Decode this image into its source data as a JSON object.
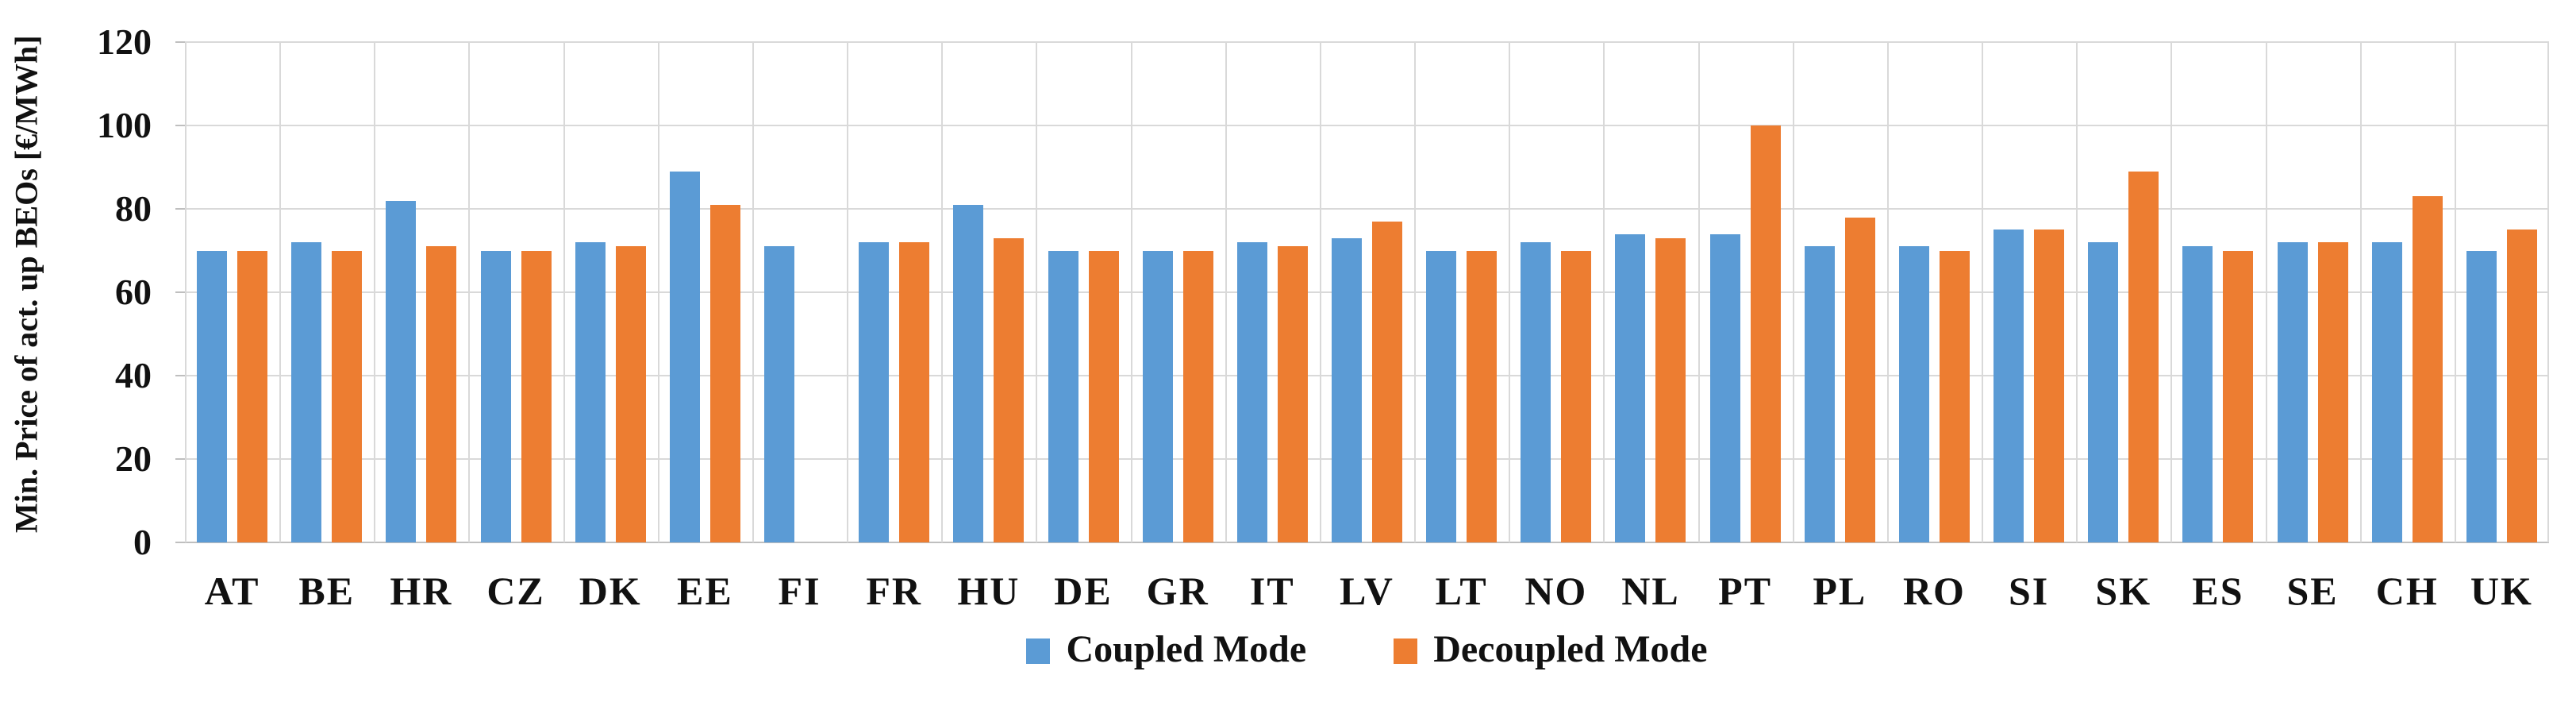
{
  "chart_data": {
    "type": "bar",
    "title": "",
    "xlabel": "",
    "ylabel": "Min. Price of act. up BEOs [€/MWh]",
    "ylim": [
      0,
      120
    ],
    "yticks": [
      0,
      20,
      40,
      60,
      80,
      100,
      120
    ],
    "grid": true,
    "legend_position": "bottom-center",
    "categories": [
      "AT",
      "BE",
      "HR",
      "CZ",
      "DK",
      "EE",
      "FI",
      "FR",
      "HU",
      "DE",
      "GR",
      "IT",
      "LV",
      "LT",
      "NO",
      "NL",
      "PT",
      "PL",
      "RO",
      "SI",
      "SK",
      "ES",
      "SE",
      "CH",
      "UK"
    ],
    "series": [
      {
        "name": "Coupled Mode",
        "color": "#5B9BD5",
        "values": [
          70,
          72,
          82,
          70,
          72,
          89,
          71,
          72,
          81,
          70,
          70,
          72,
          73,
          70,
          72,
          74,
          74,
          71,
          71,
          75,
          72,
          71,
          72,
          72,
          70
        ]
      },
      {
        "name": "Decoupled Mode",
        "color": "#ED7D31",
        "values": [
          70,
          70,
          71,
          70,
          71,
          81,
          null,
          72,
          73,
          70,
          70,
          71,
          77,
          70,
          70,
          73,
          100,
          78,
          70,
          75,
          89,
          70,
          72,
          83,
          75
        ]
      }
    ]
  },
  "colors": {
    "grid": "#D9D9D9",
    "axis": "#BFBFBF",
    "text": "#111111",
    "background": "#FFFFFF"
  }
}
